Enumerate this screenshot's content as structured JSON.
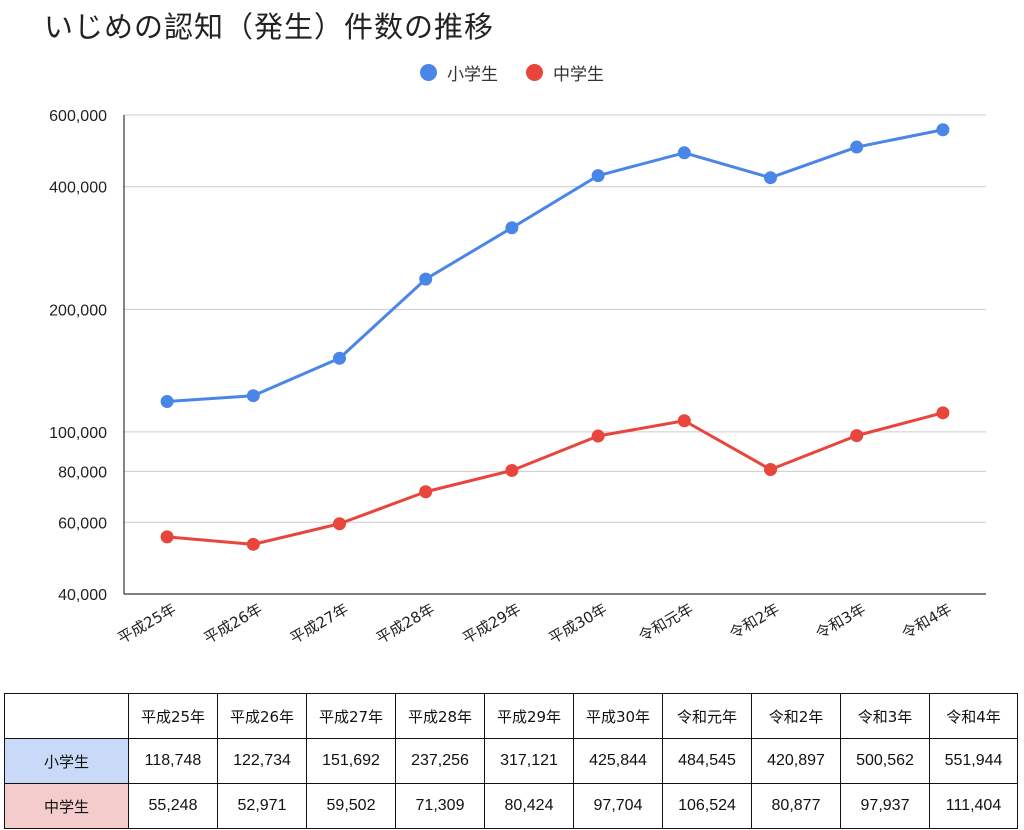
{
  "chart_data": {
    "type": "line",
    "title": "いじめの認知（発生）件数の推移",
    "categories": [
      "平成25年",
      "平成26年",
      "平成27年",
      "平成28年",
      "平成29年",
      "平成30年",
      "令和元年",
      "令和2年",
      "令和3年",
      "令和4年"
    ],
    "series": [
      {
        "name": "小学生",
        "color": "#4a86e8",
        "values": [
          118748,
          122734,
          151692,
          237256,
          317121,
          425844,
          484545,
          420897,
          500562,
          551944
        ]
      },
      {
        "name": "中学生",
        "color": "#e8453c",
        "values": [
          55248,
          52971,
          59502,
          71309,
          80424,
          97704,
          106524,
          80877,
          97937,
          111404
        ]
      }
    ],
    "yscale": "log",
    "ylim": [
      40000,
      600000
    ],
    "yticks": [
      40000,
      60000,
      80000,
      100000,
      200000,
      400000,
      600000
    ],
    "ytick_labels": [
      "40,000",
      "60,000",
      "80,000",
      "100,000",
      "200,000",
      "400,000",
      "600,000"
    ],
    "grid": true,
    "legend": "top-center",
    "xlabel": "",
    "ylabel": ""
  },
  "table": {
    "header": [
      "平成25年",
      "平成26年",
      "平成27年",
      "平成28年",
      "平成29年",
      "平成30年",
      "令和元年",
      "令和2年",
      "令和3年",
      "令和4年"
    ],
    "rows": [
      {
        "label": "小学生",
        "color": "#c9daf8",
        "cells": [
          "118,748",
          "122,734",
          "151,692",
          "237,256",
          "317,121",
          "425,844",
          "484,545",
          "420,897",
          "500,562",
          "551,944"
        ]
      },
      {
        "label": "中学生",
        "color": "#f4cccc",
        "cells": [
          "55,248",
          "52,971",
          "59,502",
          "71,309",
          "80,424",
          "97,704",
          "106,524",
          "80,877",
          "97,937",
          "111,404"
        ]
      }
    ]
  }
}
